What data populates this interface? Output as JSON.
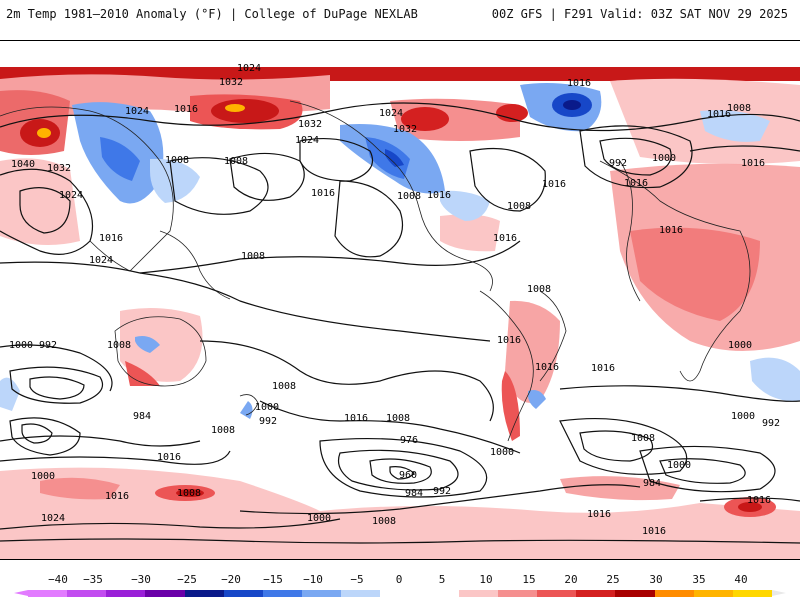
{
  "header": {
    "title_left": "2m Temp 1981–2010 Anomaly (°F) | College of DuPage NEXLAB",
    "title_right": "00Z GFS | F291 Valid: 03Z SAT NOV 29 2025"
  },
  "map": {
    "isobar_labels": [
      "1024",
      "1032",
      "1024",
      "1016",
      "1032",
      "1024",
      "1032",
      "1024",
      "1016",
      "1008",
      "1016",
      "1008",
      "1008",
      "1032",
      "1040",
      "1024",
      "1016",
      "1024",
      "1016",
      "1008",
      "1016",
      "1008",
      "1016",
      "1016",
      "1000",
      "992",
      "1016",
      "1016",
      "1008",
      "1016",
      "1008",
      "1016",
      "1016",
      "1016",
      "1008",
      "1000",
      "992",
      "1000",
      "1008",
      "992",
      "984",
      "1016",
      "1008",
      "1000",
      "976",
      "960",
      "1000",
      "984",
      "992",
      "1016",
      "1008",
      "1008",
      "1000",
      "992",
      "1000",
      "984",
      "1000",
      "1024",
      "1016",
      "1008",
      "1000",
      "1008",
      "1016",
      "1016",
      "1016",
      "1016",
      "1016"
    ]
  },
  "colorbar": {
    "labels": [
      "−40",
      "−35",
      "−30",
      "−25",
      "−20",
      "−15",
      "−10",
      "−5",
      "0",
      "5",
      "10",
      "15",
      "20",
      "25",
      "30",
      "35",
      "40"
    ],
    "colors": [
      "#e27bff",
      "#c24cf0",
      "#9a1fd8",
      "#6a00a8",
      "#0a1a8a",
      "#1747c8",
      "#3f78e8",
      "#7aa8f2",
      "#bcd6fa",
      "#ffffff",
      "#ffffff",
      "#fbc6c6",
      "#f58f8f",
      "#ec5555",
      "#d42020",
      "#a80000",
      "#ff8c00",
      "#ffb400",
      "#ffd700"
    ]
  }
}
